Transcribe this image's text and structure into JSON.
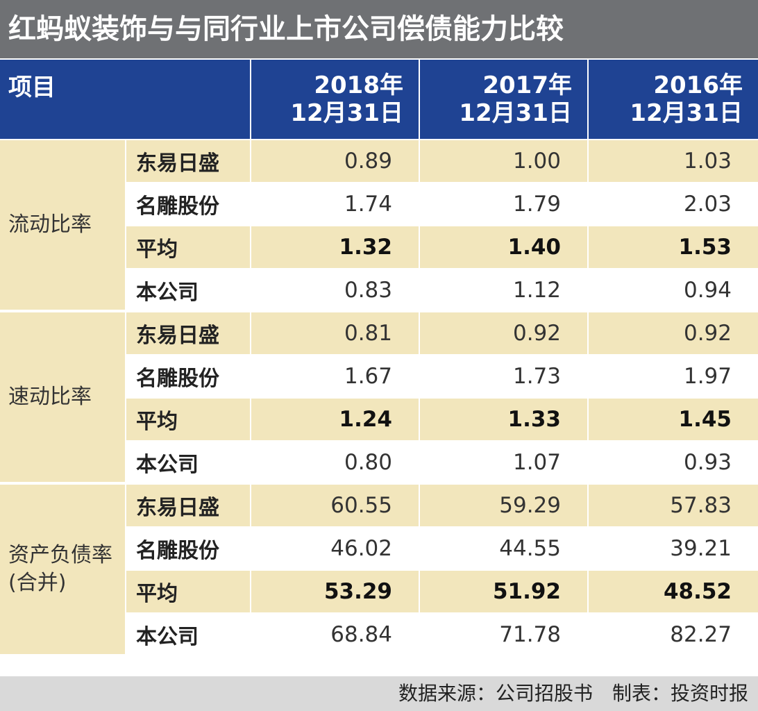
{
  "title": "红蚂蚁装饰与与同行业上市公司偿债能力比较",
  "chart_data": {
    "type": "table",
    "title": "红蚂蚁装饰与与同行业上市公司偿债能力比较",
    "header": {
      "item": "项目",
      "dates": [
        {
          "year": "2018年",
          "day": "12月31日"
        },
        {
          "year": "2017年",
          "day": "12月31日"
        },
        {
          "year": "2016年",
          "day": "12月31日"
        }
      ]
    },
    "groups": [
      {
        "metric_lines": [
          "流动比率"
        ],
        "rows": [
          {
            "company": "东易日盛",
            "values": [
              "0.89",
              "1.00",
              "1.03"
            ]
          },
          {
            "company": "名雕股份",
            "values": [
              "1.74",
              "1.79",
              "2.03"
            ]
          },
          {
            "company": "平均",
            "values": [
              "1.32",
              "1.40",
              "1.53"
            ]
          },
          {
            "company": "本公司",
            "values": [
              "0.83",
              "1.12",
              "0.94"
            ]
          }
        ]
      },
      {
        "metric_lines": [
          "速动比率"
        ],
        "rows": [
          {
            "company": "东易日盛",
            "values": [
              "0.81",
              "0.92",
              "0.92"
            ]
          },
          {
            "company": "名雕股份",
            "values": [
              "1.67",
              "1.73",
              "1.97"
            ]
          },
          {
            "company": "平均",
            "values": [
              "1.24",
              "1.33",
              "1.45"
            ]
          },
          {
            "company": "本公司",
            "values": [
              "0.80",
              "1.07",
              "0.93"
            ]
          }
        ]
      },
      {
        "metric_lines": [
          "资产负债率",
          "(合并)"
        ],
        "rows": [
          {
            "company": "东易日盛",
            "values": [
              "60.55",
              "59.29",
              "57.83"
            ]
          },
          {
            "company": "名雕股份",
            "values": [
              "46.02",
              "44.55",
              "39.21"
            ]
          },
          {
            "company": "平均",
            "values": [
              "53.29",
              "51.92",
              "48.52"
            ]
          },
          {
            "company": "本公司",
            "values": [
              "68.84",
              "71.78",
              "82.27"
            ]
          }
        ]
      }
    ]
  },
  "footer": {
    "source": "数据来源：公司招股书",
    "maker": "制表：投资时报"
  },
  "colors": {
    "title_bg": "#6f7174",
    "header_bg": "#1f4393",
    "tint_bg": "#f2e6bc",
    "footer_bg": "#d9d9d9"
  }
}
